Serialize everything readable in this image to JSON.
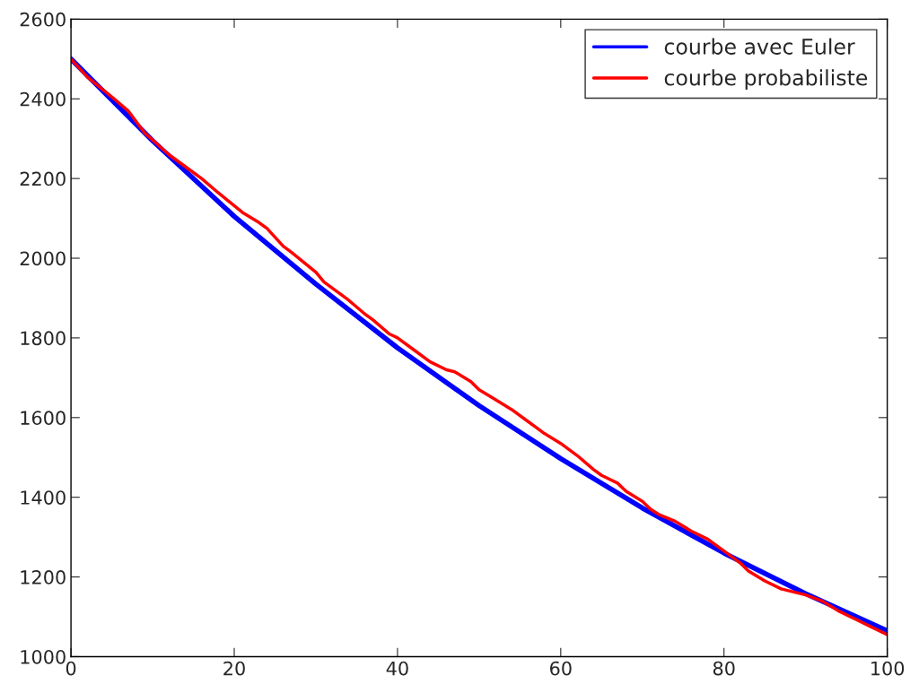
{
  "chart_data": {
    "type": "line",
    "xlim": [
      0,
      100
    ],
    "xticks": [
      0,
      20,
      40,
      60,
      80,
      100
    ],
    "ylim": [
      1000,
      2600
    ],
    "yticks": [
      1000,
      1200,
      1400,
      1600,
      1800,
      2000,
      2200,
      2400,
      2600
    ],
    "grid": false,
    "legend": "top right",
    "line_style": "solid",
    "series": [
      {
        "name": "courbe avec Euler",
        "color": "#0000ff",
        "x": [
          0,
          10,
          20,
          30,
          40,
          50,
          60,
          70,
          80,
          90,
          100
        ],
        "values": [
          2500,
          2295,
          2105,
          1935,
          1775,
          1630,
          1497,
          1373,
          1260,
          1158,
          1065
        ]
      },
      {
        "name": "courbe probabiliste",
        "color": "#ff0000",
        "x": [
          0,
          2,
          5,
          7,
          9,
          12,
          15,
          16,
          18,
          21,
          23,
          24,
          26,
          27,
          30,
          31,
          34,
          36,
          37,
          39,
          40,
          42,
          44,
          46,
          47,
          49,
          50,
          52,
          54,
          56,
          57,
          58,
          60,
          62,
          64,
          65,
          67,
          68,
          70,
          71,
          72,
          74,
          76,
          78,
          80,
          82,
          83,
          85,
          87,
          89,
          90,
          92,
          94,
          96,
          98,
          100
        ],
        "values": [
          2500,
          2455,
          2405,
          2370,
          2315,
          2260,
          2215,
          2200,
          2165,
          2115,
          2090,
          2075,
          2030,
          2015,
          1965,
          1940,
          1895,
          1860,
          1845,
          1810,
          1800,
          1770,
          1740,
          1720,
          1715,
          1690,
          1670,
          1645,
          1620,
          1590,
          1575,
          1560,
          1535,
          1505,
          1470,
          1455,
          1435,
          1415,
          1390,
          1370,
          1357,
          1340,
          1315,
          1295,
          1265,
          1235,
          1215,
          1190,
          1170,
          1160,
          1155,
          1140,
          1115,
          1095,
          1075,
          1055
        ]
      }
    ]
  }
}
